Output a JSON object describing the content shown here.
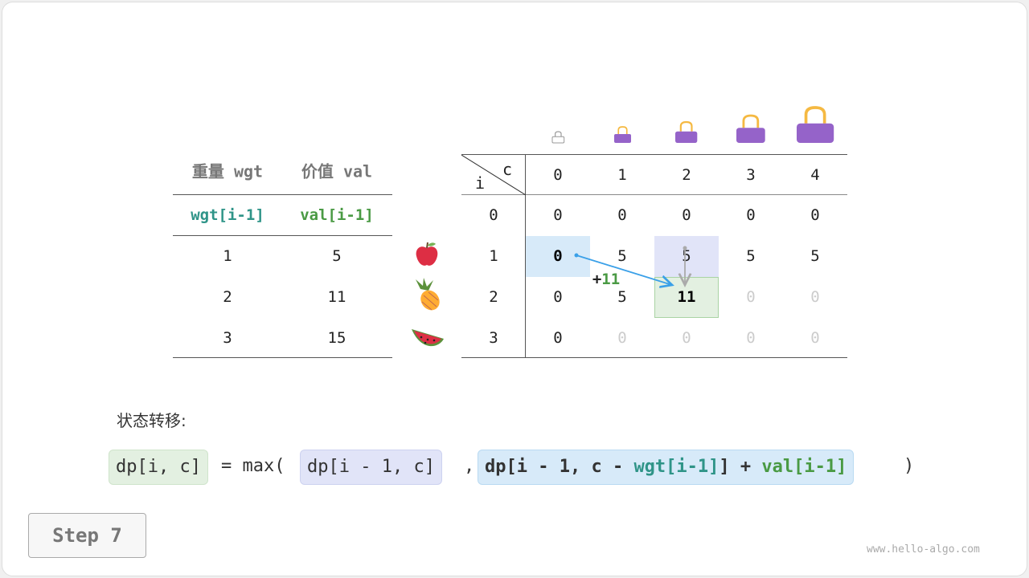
{
  "items_table": {
    "headers": [
      "重量 wgt",
      "价值 val"
    ],
    "subheaders": [
      "wgt[i-1]",
      "val[i-1]"
    ],
    "rows": [
      [
        "1",
        "5"
      ],
      [
        "2",
        "11"
      ],
      [
        "3",
        "15"
      ]
    ],
    "item_icons": [
      "apple-icon",
      "pineapple-icon",
      "watermelon-icon"
    ]
  },
  "dp_table": {
    "corner_row_label": "i",
    "corner_col_label": "c",
    "col_headers": [
      "0",
      "1",
      "2",
      "3",
      "4"
    ],
    "row_headers": [
      "0",
      "1",
      "2",
      "3"
    ],
    "cells": [
      [
        "0",
        "0",
        "0",
        "0",
        "0"
      ],
      [
        "0",
        "5",
        "5",
        "5",
        "5"
      ],
      [
        "0",
        "5",
        "11",
        "0",
        "0"
      ],
      [
        "0",
        "0",
        "0",
        "0",
        "0"
      ]
    ],
    "faded": [
      [
        false,
        false,
        false,
        false,
        false
      ],
      [
        false,
        false,
        false,
        false,
        false
      ],
      [
        false,
        false,
        false,
        true,
        true
      ],
      [
        false,
        true,
        true,
        true,
        true
      ]
    ],
    "capacity_icon": "handbag-icon",
    "add_label_sign": "+",
    "add_label_value": "11"
  },
  "colors": {
    "teal": "#2f9488",
    "green": "#4a9a44",
    "blue_bg": "#d7eaf9",
    "lavender_bg": "#e1e4f8",
    "green_bg": "#e3f0e1",
    "arrow": "#3aa0e8",
    "bag": "#9563c9",
    "handle": "#f5b942"
  },
  "formula": {
    "title": "状态转移:",
    "lhs": "dp[i, c]",
    "eq": " = max(",
    "opt1": "dp[i - 1, c]",
    "comma": ",",
    "opt2_a": "dp[i - 1, c - ",
    "opt2_wgt": "wgt[i-1]",
    "opt2_b": "] + ",
    "opt2_val": "val[i-1]",
    "close": ")"
  },
  "step_label": "Step 7",
  "watermark": "www.hello-algo.com"
}
